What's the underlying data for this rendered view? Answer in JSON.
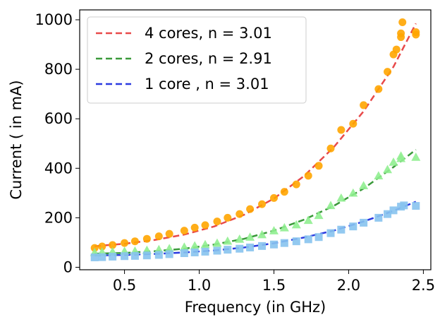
{
  "chart_data": {
    "type": "scatter",
    "title": "",
    "xlabel": "Frequency (in GHz)",
    "ylabel": "Current ( in mA)",
    "xlim": [
      0.2,
      2.55
    ],
    "ylim": [
      -10,
      1040
    ],
    "xticks": [
      0.5,
      1.0,
      1.5,
      2.0,
      2.5
    ],
    "xtick_labels": [
      "0.5",
      "1.0",
      "1.5",
      "2.0",
      "2.5"
    ],
    "yticks": [
      0,
      200,
      400,
      600,
      800,
      1000
    ],
    "ytick_labels": [
      "0",
      "200",
      "400",
      "600",
      "800",
      "1000"
    ],
    "grid": false,
    "legend_position": "top-left",
    "series": [
      {
        "name": "4 cores, n = 3.01",
        "marker": "circle",
        "marker_color": "#ffa500",
        "line_color": "#e84a4a",
        "points": [
          [
            0.3,
            78
          ],
          [
            0.35,
            84
          ],
          [
            0.42,
            90
          ],
          [
            0.5,
            98
          ],
          [
            0.57,
            105
          ],
          [
            0.65,
            115
          ],
          [
            0.73,
            125
          ],
          [
            0.8,
            135
          ],
          [
            0.9,
            148
          ],
          [
            0.97,
            160
          ],
          [
            1.04,
            170
          ],
          [
            1.12,
            185
          ],
          [
            1.19,
            200
          ],
          [
            1.27,
            215
          ],
          [
            1.34,
            235
          ],
          [
            1.42,
            255
          ],
          [
            1.5,
            280
          ],
          [
            1.57,
            305
          ],
          [
            1.65,
            335
          ],
          [
            1.73,
            370
          ],
          [
            1.8,
            410
          ],
          [
            1.88,
            480
          ],
          [
            1.95,
            555
          ],
          [
            2.03,
            580
          ],
          [
            2.1,
            655
          ],
          [
            2.2,
            720
          ],
          [
            2.26,
            790
          ],
          [
            2.3,
            860
          ],
          [
            2.32,
            880
          ],
          [
            2.35,
            930
          ],
          [
            2.35,
            945
          ],
          [
            2.45,
            940
          ],
          [
            2.45,
            950
          ],
          [
            2.36,
            990
          ]
        ],
        "fit": [
          [
            0.3,
            85
          ],
          [
            0.5,
            95
          ],
          [
            0.7,
            110
          ],
          [
            0.9,
            132
          ],
          [
            1.1,
            165
          ],
          [
            1.3,
            212
          ],
          [
            1.5,
            278
          ],
          [
            1.7,
            368
          ],
          [
            1.9,
            485
          ],
          [
            2.1,
            630
          ],
          [
            2.3,
            810
          ],
          [
            2.45,
            985
          ]
        ]
      },
      {
        "name": "2 cores, n = 2.91",
        "marker": "triangle",
        "marker_color": "#90ee90",
        "line_color": "#3a9a3a",
        "points": [
          [
            0.3,
            60
          ],
          [
            0.35,
            62
          ],
          [
            0.42,
            63
          ],
          [
            0.5,
            65
          ],
          [
            0.57,
            66
          ],
          [
            0.65,
            69
          ],
          [
            0.73,
            72
          ],
          [
            0.8,
            76
          ],
          [
            0.9,
            82
          ],
          [
            0.97,
            87
          ],
          [
            1.04,
            92
          ],
          [
            1.12,
            98
          ],
          [
            1.19,
            106
          ],
          [
            1.27,
            114
          ],
          [
            1.34,
            122
          ],
          [
            1.42,
            132
          ],
          [
            1.5,
            148
          ],
          [
            1.57,
            160
          ],
          [
            1.65,
            172
          ],
          [
            1.73,
            190
          ],
          [
            1.8,
            210
          ],
          [
            1.88,
            250
          ],
          [
            1.95,
            280
          ],
          [
            2.03,
            300
          ],
          [
            2.1,
            330
          ],
          [
            2.2,
            370
          ],
          [
            2.26,
            395
          ],
          [
            2.3,
            425
          ],
          [
            2.35,
            440
          ],
          [
            2.35,
            450
          ],
          [
            2.45,
            445
          ]
        ],
        "fit": [
          [
            0.3,
            55
          ],
          [
            0.5,
            58
          ],
          [
            0.7,
            65
          ],
          [
            0.9,
            75
          ],
          [
            1.1,
            92
          ],
          [
            1.3,
            115
          ],
          [
            1.5,
            148
          ],
          [
            1.7,
            192
          ],
          [
            1.9,
            248
          ],
          [
            2.1,
            318
          ],
          [
            2.3,
            405
          ],
          [
            2.45,
            475
          ]
        ]
      },
      {
        "name": "1 core , n = 3.01",
        "marker": "square",
        "marker_color": "#87c3ee",
        "line_color": "#2a3ae0",
        "points": [
          [
            0.3,
            40
          ],
          [
            0.35,
            41
          ],
          [
            0.42,
            43
          ],
          [
            0.5,
            45
          ],
          [
            0.57,
            46
          ],
          [
            0.65,
            48
          ],
          [
            0.73,
            50
          ],
          [
            0.8,
            53
          ],
          [
            0.9,
            57
          ],
          [
            0.97,
            60
          ],
          [
            1.04,
            63
          ],
          [
            1.12,
            67
          ],
          [
            1.19,
            71
          ],
          [
            1.27,
            75
          ],
          [
            1.34,
            80
          ],
          [
            1.42,
            86
          ],
          [
            1.5,
            92
          ],
          [
            1.57,
            98
          ],
          [
            1.65,
            105
          ],
          [
            1.73,
            113
          ],
          [
            1.8,
            122
          ],
          [
            1.88,
            138
          ],
          [
            1.95,
            152
          ],
          [
            2.03,
            165
          ],
          [
            2.1,
            180
          ],
          [
            2.2,
            200
          ],
          [
            2.26,
            215
          ],
          [
            2.3,
            230
          ],
          [
            2.35,
            245
          ],
          [
            2.37,
            250
          ],
          [
            2.45,
            248
          ]
        ],
        "fit": [
          [
            0.3,
            48
          ],
          [
            0.5,
            50
          ],
          [
            0.7,
            54
          ],
          [
            0.9,
            60
          ],
          [
            1.1,
            68
          ],
          [
            1.3,
            80
          ],
          [
            1.5,
            97
          ],
          [
            1.7,
            120
          ],
          [
            1.9,
            148
          ],
          [
            2.1,
            185
          ],
          [
            2.3,
            228
          ],
          [
            2.45,
            265
          ]
        ]
      }
    ]
  }
}
